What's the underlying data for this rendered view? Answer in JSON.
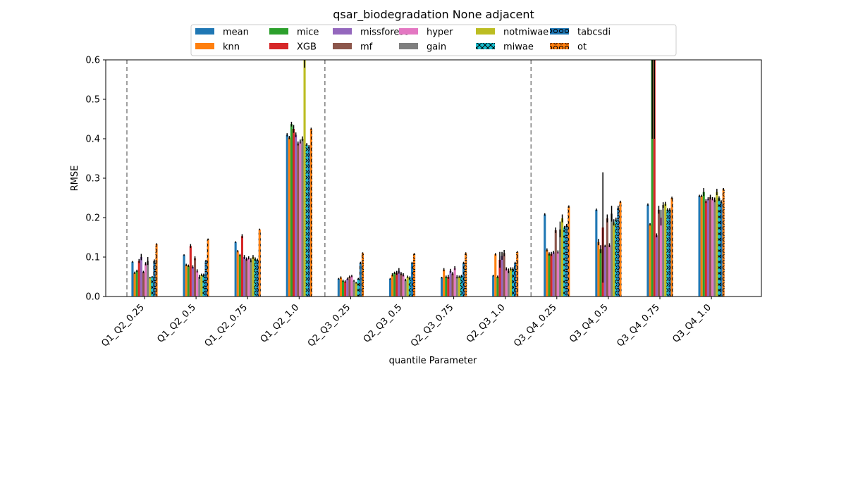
{
  "chart_data": {
    "type": "bar",
    "title": "qsar_biodegradation None adjacent",
    "xlabel": "quantile Parameter",
    "ylabel": "RMSE",
    "ylim": [
      0,
      0.6
    ],
    "yticks": [
      "0.0",
      "0.1",
      "0.2",
      "0.3",
      "0.4",
      "0.5",
      "0.6"
    ],
    "legend_position": "top-center",
    "group_separators_after": [
      "Q1_Q2_0.25",
      "Q1_Q2_1.0",
      "Q2_Q3_1.0"
    ],
    "categories": [
      "Q1_Q2_0.25",
      "Q1_Q2_0.5",
      "Q1_Q2_0.75",
      "Q1_Q2_1.0",
      "Q2_Q3_0.25",
      "Q2_Q3_0.5",
      "Q2_Q3_0.75",
      "Q2_Q3_1.0",
      "Q3_Q4_0.25",
      "Q3_Q4_0.5",
      "Q3_Q4_0.75",
      "Q3_Q4_1.0"
    ],
    "series": [
      {
        "name": "mean",
        "color": "#1f77b4",
        "hatch": "none",
        "values": [
          0.088,
          0.105,
          0.138,
          0.41,
          0.045,
          0.045,
          0.048,
          0.053,
          0.208,
          0.22,
          0.233,
          0.255
        ],
        "errors": [
          0.002,
          0.002,
          0.002,
          0.004,
          0.002,
          0.002,
          0.002,
          0.002,
          0.003,
          0.003,
          0.003,
          0.003
        ]
      },
      {
        "name": "knn",
        "color": "#ff7f0e",
        "hatch": "none",
        "values": [
          0.06,
          0.08,
          0.115,
          0.403,
          0.048,
          0.055,
          0.068,
          0.107,
          0.118,
          0.138,
          0.183,
          0.255
        ],
        "errors": [
          0.003,
          0.003,
          0.003,
          0.004,
          0.003,
          0.004,
          0.004,
          0.003,
          0.004,
          0.008,
          0.003,
          0.003
        ]
      },
      {
        "name": "mice",
        "color": "#2ca02c",
        "hatch": "none",
        "values": [
          0.065,
          0.078,
          0.105,
          0.437,
          0.04,
          0.06,
          0.05,
          0.05,
          0.108,
          0.12,
          0.6,
          0.265
        ],
        "errors": [
          0.003,
          0.003,
          0.003,
          0.006,
          0.003,
          0.003,
          0.003,
          0.003,
          0.004,
          0.01,
          0.2,
          0.01
        ]
      },
      {
        "name": "XGB",
        "color": "#d62728",
        "hatch": "none",
        "values": [
          0.09,
          0.128,
          0.153,
          0.425,
          0.038,
          0.06,
          0.05,
          0.093,
          0.108,
          0.175,
          0.6,
          0.242
        ],
        "errors": [
          0.005,
          0.005,
          0.005,
          0.01,
          0.003,
          0.005,
          0.005,
          0.02,
          0.005,
          0.14,
          0.2,
          0.005
        ]
      },
      {
        "name": "missforest",
        "color": "#9467bd",
        "hatch": "none",
        "values": [
          0.1,
          0.075,
          0.1,
          0.41,
          0.045,
          0.065,
          0.065,
          0.103,
          0.112,
          0.128,
          0.155,
          0.248
        ],
        "errors": [
          0.008,
          0.004,
          0.005,
          0.006,
          0.003,
          0.007,
          0.005,
          0.01,
          0.004,
          0.003,
          0.005,
          0.004
        ]
      },
      {
        "name": "mf",
        "color": "#8c564b",
        "hatch": "none",
        "values": [
          0.062,
          0.097,
          0.095,
          0.388,
          0.05,
          0.058,
          0.058,
          0.11,
          0.168,
          0.198,
          0.22,
          0.252
        ],
        "errors": [
          0.003,
          0.005,
          0.004,
          0.005,
          0.003,
          0.004,
          0.004,
          0.008,
          0.007,
          0.01,
          0.01,
          0.006
        ]
      },
      {
        "name": "hyper",
        "color": "#e377c2",
        "hatch": "none",
        "values": [
          0.083,
          0.065,
          0.098,
          0.393,
          0.052,
          0.055,
          0.072,
          0.07,
          0.113,
          0.13,
          0.2,
          0.248
        ],
        "errors": [
          0.004,
          0.004,
          0.004,
          0.005,
          0.003,
          0.004,
          0.005,
          0.004,
          0.004,
          0.005,
          0.02,
          0.004
        ]
      },
      {
        "name": "gain",
        "color": "#7f7f7f",
        "hatch": "none",
        "values": [
          0.09,
          0.05,
          0.092,
          0.4,
          0.04,
          0.042,
          0.05,
          0.065,
          0.17,
          0.21,
          0.232,
          0.245
        ],
        "errors": [
          0.01,
          0.005,
          0.005,
          0.006,
          0.002,
          0.003,
          0.004,
          0.006,
          0.02,
          0.02,
          0.007,
          0.006
        ]
      },
      {
        "name": "notmiwae",
        "color": "#bcbd22",
        "hatch": "none",
        "values": [
          0.048,
          0.055,
          0.1,
          0.6,
          0.035,
          0.05,
          0.05,
          0.07,
          0.198,
          0.188,
          0.235,
          0.265
        ],
        "errors": [
          0.002,
          0.003,
          0.005,
          0.02,
          0.002,
          0.003,
          0.003,
          0.004,
          0.01,
          0.008,
          0.005,
          0.008
        ]
      },
      {
        "name": "miwae",
        "color": "#17becf",
        "hatch": "x",
        "values": [
          0.05,
          0.055,
          0.095,
          0.385,
          0.045,
          0.048,
          0.052,
          0.07,
          0.175,
          0.195,
          0.22,
          0.25
        ],
        "errors": [
          0.002,
          0.003,
          0.004,
          0.004,
          0.002,
          0.003,
          0.003,
          0.004,
          0.004,
          0.005,
          0.004,
          0.004
        ]
      },
      {
        "name": "tabcsdi",
        "color": "#1f77b4",
        "hatch": "o",
        "values": [
          0.09,
          0.09,
          0.093,
          0.38,
          0.085,
          0.085,
          0.085,
          0.085,
          0.18,
          0.225,
          0.22,
          0.24
        ],
        "errors": [
          0.004,
          0.003,
          0.003,
          0.004,
          0.003,
          0.003,
          0.003,
          0.003,
          0.004,
          0.005,
          0.004,
          0.004
        ]
      },
      {
        "name": "ot",
        "color": "#ff7f0e",
        "hatch": "o",
        "values": [
          0.133,
          0.145,
          0.17,
          0.425,
          0.11,
          0.108,
          0.11,
          0.113,
          0.228,
          0.24,
          0.25,
          0.272
        ],
        "errors": [
          0.002,
          0.002,
          0.002,
          0.003,
          0.002,
          0.002,
          0.002,
          0.002,
          0.003,
          0.003,
          0.003,
          0.003
        ]
      }
    ]
  }
}
